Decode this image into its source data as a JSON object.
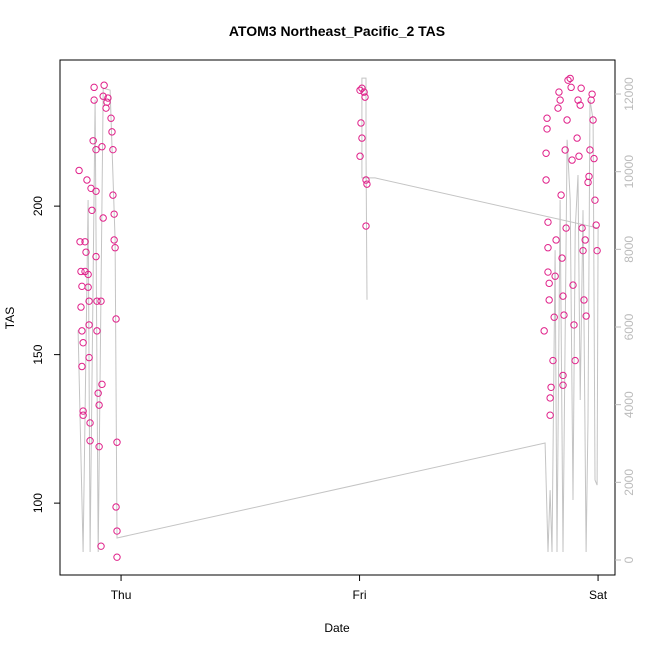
{
  "chart_data": {
    "type": "scatter",
    "title": "ATOM3 Northeast_Pacific_2 TAS",
    "x_label": "Date",
    "y_label": "TAS",
    "color": "#e0218a",
    "x": [
      -0.176,
      -0.172,
      -0.168,
      -0.164,
      -0.168,
      -0.164,
      -0.159,
      -0.164,
      -0.159,
      -0.159,
      -0.151,
      -0.151,
      -0.147,
      -0.143,
      -0.138,
      -0.138,
      -0.134,
      -0.134,
      -0.134,
      -0.13,
      -0.13,
      -0.126,
      -0.122,
      -0.117,
      -0.113,
      -0.113,
      -0.105,
      -0.105,
      -0.105,
      -0.101,
      -0.101,
      -0.096,
      -0.092,
      -0.092,
      -0.084,
      -0.084,
      -0.08,
      -0.075,
      -0.08,
      -0.071,
      -0.075,
      -0.063,
      -0.059,
      -0.055,
      -0.042,
      -0.038,
      -0.034,
      -0.034,
      -0.029,
      -0.029,
      -0.025,
      -0.021,
      -0.017,
      -0.021,
      -0.017,
      -0.017,
      1.002,
      1.01,
      1.019,
      1.023,
      1.006,
      1.01,
      1.002,
      1.027,
      1.031,
      1.027,
      1.774,
      1.782,
      1.782,
      1.786,
      1.786,
      1.79,
      1.79,
      1.79,
      1.795,
      1.795,
      1.799,
      1.799,
      1.803,
      1.811,
      1.816,
      1.82,
      1.824,
      1.832,
      1.836,
      1.841,
      1.845,
      1.849,
      1.853,
      1.853,
      1.853,
      1.857,
      1.862,
      1.866,
      1.87,
      1.874,
      1.883,
      1.887,
      1.891,
      1.895,
      1.899,
      1.904,
      1.912,
      1.916,
      1.92,
      1.925,
      1.929,
      1.933,
      1.937,
      1.941,
      1.946,
      1.95,
      1.958,
      1.962,
      1.966,
      1.971,
      1.975,
      1.979,
      1.983,
      1.987,
      1.992,
      1.996
    ],
    "y": [
      212,
      188,
      178,
      173,
      166,
      158,
      154,
      146,
      131,
      129.6,
      188,
      178,
      184.5,
      208.8,
      177,
      172.7,
      168,
      160,
      149,
      127,
      121,
      206,
      198.6,
      222,
      240,
      235.7,
      219,
      205,
      183,
      168,
      158,
      137,
      119,
      133,
      85.5,
      168,
      140,
      196,
      220,
      240.7,
      237,
      233,
      235,
      236.4,
      229.6,
      225,
      219,
      203.7,
      197.3,
      188.6,
      186,
      162,
      120.5,
      98.7,
      90.6,
      81.8,
      239,
      239.7,
      238.4,
      236.7,
      228,
      222.9,
      216.8,
      208.8,
      207.4,
      193.3,
      158,
      217.8,
      208.8,
      229.6,
      226,
      194.6,
      186,
      177.8,
      174,
      168.4,
      135.4,
      129.6,
      139,
      148,
      162.6,
      176.4,
      188.6,
      233,
      238.4,
      235.7,
      203.7,
      182.5,
      169.7,
      143,
      139.7,
      163.3,
      218.9,
      192.6,
      229,
      242.4,
      243,
      240,
      215.5,
      173.4,
      160,
      148,
      222.9,
      235.7,
      216.8,
      234,
      239.7,
      192.6,
      185,
      168.4,
      188.6,
      163,
      208,
      210,
      218.9,
      235.7,
      237.7,
      229,
      216,
      202,
      193.6,
      185
    ],
    "line": {
      "axis": "y2",
      "color": "#c4c4c4",
      "x": [
        -0.18,
        -0.159,
        -0.138,
        -0.13,
        -0.109,
        -0.096,
        -0.075,
        -0.046,
        -0.025,
        -0.017,
        1.778,
        1.79,
        1.799,
        1.807,
        1.82,
        1.828,
        1.841,
        1.853,
        1.87,
        1.883,
        1.895,
        1.904,
        1.916,
        1.925,
        1.937,
        1.95,
        1.958,
        1.966,
        1.979,
        1.987,
        1.996,
        2.0,
        1.065,
        1.01,
        1.01,
        1.027,
        1.027,
        1.031
      ],
      "y": [
        5920,
        206,
        9270,
        206,
        11850,
        206,
        12150,
        12100,
        8240,
        567,
        3013,
        206,
        1800,
        206,
        7980,
        206,
        9270,
        206,
        10820,
        9270,
        1545,
        8500,
        9915,
        4120,
        9010,
        206,
        3605,
        11850,
        11330,
        2060,
        1930,
        8550,
        9840,
        9840,
        12410,
        12410,
        10560,
        6700
      ]
    },
    "xlim": [
      -0.256,
      2.071
    ],
    "xticks": [
      {
        "value": 0,
        "label": "Thu"
      },
      {
        "value": 1,
        "label": "Fri"
      },
      {
        "value": 2,
        "label": "Sat"
      }
    ],
    "ylim": [
      75.8,
      249.2
    ],
    "yticks": [
      100,
      150,
      200
    ],
    "y2lim": [
      -386,
      12876
    ],
    "y2ticks": [
      0,
      2000,
      4000,
      6000,
      8000,
      10000,
      12000
    ]
  }
}
